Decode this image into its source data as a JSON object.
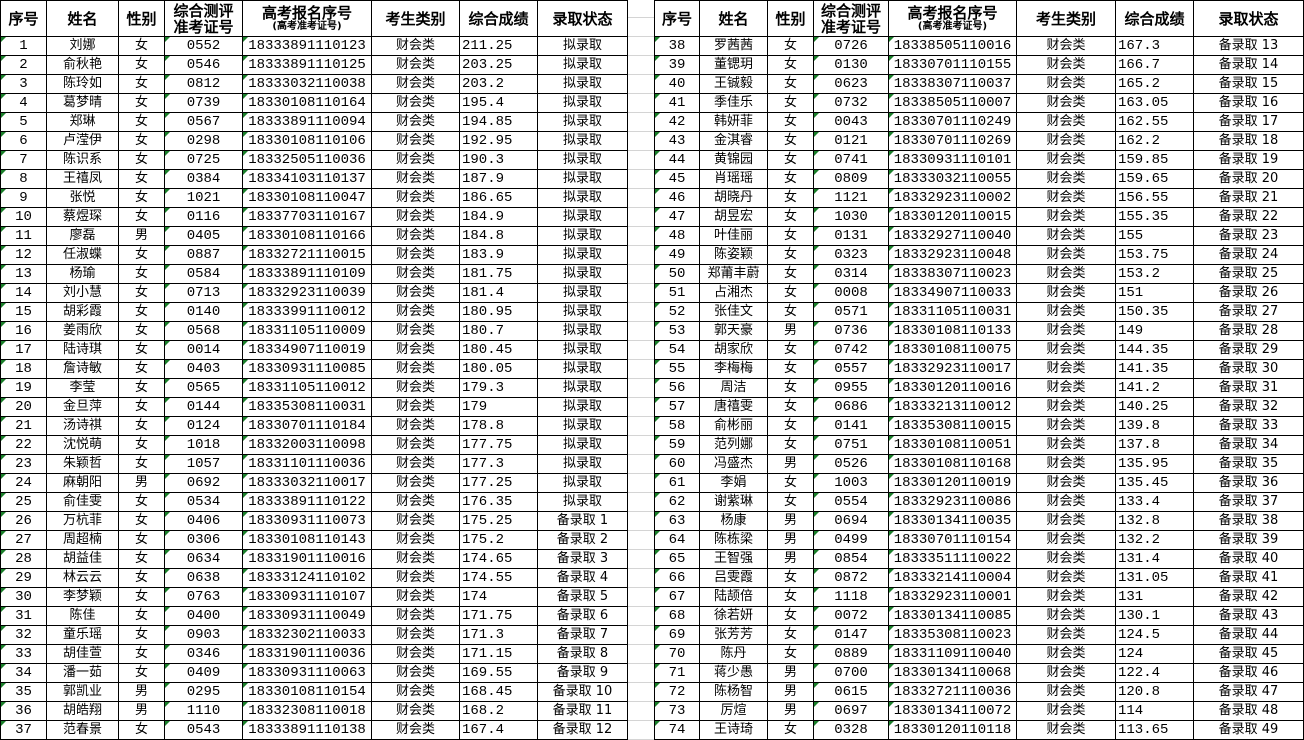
{
  "headers": {
    "seq": "序号",
    "name": "姓名",
    "gender": "性别",
    "eval_id_line1": "综合测评",
    "eval_id_line2": "准考证号",
    "gaokao_id": "高考报名序号",
    "gaokao_id_sub": "(高考准考证号)",
    "category": "考生类别",
    "score": "综合成绩",
    "status": "录取状态"
  },
  "left_rows": [
    [
      "1",
      "刘娜",
      "女",
      "0552",
      "18333891110123",
      "财会类",
      "211.25",
      "拟录取"
    ],
    [
      "2",
      "俞秋艳",
      "女",
      "0546",
      "18333891110125",
      "财会类",
      "203.25",
      "拟录取"
    ],
    [
      "3",
      "陈玲如",
      "女",
      "0812",
      "18333032110038",
      "财会类",
      "203.2",
      "拟录取"
    ],
    [
      "4",
      "葛梦晴",
      "女",
      "0739",
      "18330108110164",
      "财会类",
      "195.4",
      "拟录取"
    ],
    [
      "5",
      "郑琳",
      "女",
      "0567",
      "18333891110094",
      "财会类",
      "194.85",
      "拟录取"
    ],
    [
      "6",
      "卢滢伊",
      "女",
      "0298",
      "18330108110106",
      "财会类",
      "192.95",
      "拟录取"
    ],
    [
      "7",
      "陈识系",
      "女",
      "0725",
      "18332505110036",
      "财会类",
      "190.3",
      "拟录取"
    ],
    [
      "8",
      "王禧凤",
      "女",
      "0384",
      "18334103110137",
      "财会类",
      "187.9",
      "拟录取"
    ],
    [
      "9",
      "张悦",
      "女",
      "1021",
      "18330108110047",
      "财会类",
      "186.65",
      "拟录取"
    ],
    [
      "10",
      "蔡煜琛",
      "女",
      "0116",
      "18337703110167",
      "财会类",
      "184.9",
      "拟录取"
    ],
    [
      "11",
      "廖磊",
      "男",
      "0405",
      "18330108110166",
      "财会类",
      "184.8",
      "拟录取"
    ],
    [
      "12",
      "任淑蝶",
      "女",
      "0887",
      "18332721110015",
      "财会类",
      "183.9",
      "拟录取"
    ],
    [
      "13",
      "杨瑜",
      "女",
      "0584",
      "18333891110109",
      "财会类",
      "181.75",
      "拟录取"
    ],
    [
      "14",
      "刘小慧",
      "女",
      "0713",
      "18332923110039",
      "财会类",
      "181.4",
      "拟录取"
    ],
    [
      "15",
      "胡彩霞",
      "女",
      "0140",
      "18333991110012",
      "财会类",
      "180.95",
      "拟录取"
    ],
    [
      "16",
      "姜雨欣",
      "女",
      "0568",
      "18331105110009",
      "财会类",
      "180.7",
      "拟录取"
    ],
    [
      "17",
      "陆诗琪",
      "女",
      "0014",
      "18334907110019",
      "财会类",
      "180.45",
      "拟录取"
    ],
    [
      "18",
      "詹诗敏",
      "女",
      "0403",
      "18330931110085",
      "财会类",
      "180.05",
      "拟录取"
    ],
    [
      "19",
      "李莹",
      "女",
      "0565",
      "18331105110012",
      "财会类",
      "179.3",
      "拟录取"
    ],
    [
      "20",
      "金旦萍",
      "女",
      "0144",
      "18335308110031",
      "财会类",
      "179",
      "拟录取"
    ],
    [
      "21",
      "汤诗祺",
      "女",
      "0124",
      "18330701110184",
      "财会类",
      "178.8",
      "拟录取"
    ],
    [
      "22",
      "沈悦萌",
      "女",
      "1018",
      "18332003110098",
      "财会类",
      "177.75",
      "拟录取"
    ],
    [
      "23",
      "朱颖哲",
      "女",
      "1057",
      "18331101110036",
      "财会类",
      "177.3",
      "拟录取"
    ],
    [
      "24",
      "麻朝阳",
      "男",
      "0692",
      "18333032110017",
      "财会类",
      "177.25",
      "拟录取"
    ],
    [
      "25",
      "俞佳雯",
      "女",
      "0534",
      "18333891110122",
      "财会类",
      "176.35",
      "拟录取"
    ],
    [
      "26",
      "万杭菲",
      "女",
      "0406",
      "18330931110073",
      "财会类",
      "175.25",
      "备录取 1"
    ],
    [
      "27",
      "周超楠",
      "女",
      "0306",
      "18330108110143",
      "财会类",
      "175.2",
      "备录取 2"
    ],
    [
      "28",
      "胡益佳",
      "女",
      "0634",
      "18331901110016",
      "财会类",
      "174.65",
      "备录取 3"
    ],
    [
      "29",
      "林云云",
      "女",
      "0638",
      "18333124110102",
      "财会类",
      "174.55",
      "备录取 4"
    ],
    [
      "30",
      "李梦颖",
      "女",
      "0763",
      "18330931110107",
      "财会类",
      "174",
      "备录取 5"
    ],
    [
      "31",
      "陈佳",
      "女",
      "0400",
      "18330931110049",
      "财会类",
      "171.75",
      "备录取 6"
    ],
    [
      "32",
      "童乐瑶",
      "女",
      "0903",
      "18332302110033",
      "财会类",
      "171.3",
      "备录取 7"
    ],
    [
      "33",
      "胡佳萱",
      "女",
      "0346",
      "18331901110036",
      "财会类",
      "171.15",
      "备录取 8"
    ],
    [
      "34",
      "潘一茹",
      "女",
      "0409",
      "18330931110063",
      "财会类",
      "169.55",
      "备录取 9"
    ],
    [
      "35",
      "郭凯业",
      "男",
      "0295",
      "18330108110154",
      "财会类",
      "168.45",
      "备录取 10"
    ],
    [
      "36",
      "胡皓翔",
      "男",
      "1110",
      "18332308110018",
      "财会类",
      "168.2",
      "备录取 11"
    ],
    [
      "37",
      "范春景",
      "女",
      "0543",
      "18333891110138",
      "财会类",
      "167.4",
      "备录取 12"
    ]
  ],
  "right_rows": [
    [
      "38",
      "罗茜茜",
      "女",
      "0726",
      "18338505110016",
      "财会类",
      "167.3",
      "备录取 13"
    ],
    [
      "39",
      "董锶玥",
      "女",
      "0130",
      "18330701110155",
      "财会类",
      "166.7",
      "备录取 14"
    ],
    [
      "40",
      "王铖毅",
      "女",
      "0623",
      "18338307110037",
      "财会类",
      "165.2",
      "备录取 15"
    ],
    [
      "41",
      "季佳乐",
      "女",
      "0732",
      "18338505110007",
      "财会类",
      "163.05",
      "备录取 16"
    ],
    [
      "42",
      "韩妍菲",
      "女",
      "0043",
      "18330701110249",
      "财会类",
      "162.55",
      "备录取 17"
    ],
    [
      "43",
      "金淇睿",
      "女",
      "0121",
      "18330701110269",
      "财会类",
      "162.2",
      "备录取 18"
    ],
    [
      "44",
      "黄锦园",
      "女",
      "0741",
      "18330931110101",
      "财会类",
      "159.85",
      "备录取 19"
    ],
    [
      "45",
      "肖瑶瑶",
      "女",
      "0809",
      "18333032110055",
      "财会类",
      "159.65",
      "备录取 20"
    ],
    [
      "46",
      "胡晓丹",
      "女",
      "1121",
      "18332923110002",
      "财会类",
      "156.55",
      "备录取 21"
    ],
    [
      "47",
      "胡昱宏",
      "女",
      "1030",
      "18330120110015",
      "财会类",
      "155.35",
      "备录取 22"
    ],
    [
      "48",
      "叶佳丽",
      "女",
      "0131",
      "18332927110040",
      "财会类",
      "155",
      "备录取 23"
    ],
    [
      "49",
      "陈姿颖",
      "女",
      "0323",
      "18332923110048",
      "财会类",
      "153.75",
      "备录取 24"
    ],
    [
      "50",
      "郑莆丰蔚",
      "女",
      "0314",
      "18338307110023",
      "财会类",
      "153.2",
      "备录取 25"
    ],
    [
      "51",
      "占湘杰",
      "女",
      "0008",
      "18334907110033",
      "财会类",
      "151",
      "备录取 26"
    ],
    [
      "52",
      "张佳文",
      "女",
      "0571",
      "18331105110031",
      "财会类",
      "150.35",
      "备录取 27"
    ],
    [
      "53",
      "郭天豪",
      "男",
      "0736",
      "18330108110133",
      "财会类",
      "149",
      "备录取 28"
    ],
    [
      "54",
      "胡家欣",
      "女",
      "0742",
      "18330108110075",
      "财会类",
      "144.35",
      "备录取 29"
    ],
    [
      "55",
      "李梅梅",
      "女",
      "0557",
      "18332923110017",
      "财会类",
      "141.35",
      "备录取 30"
    ],
    [
      "56",
      "周洁",
      "女",
      "0955",
      "18330120110016",
      "财会类",
      "141.2",
      "备录取 31"
    ],
    [
      "57",
      "唐禧雯",
      "女",
      "0686",
      "18333213110012",
      "财会类",
      "140.25",
      "备录取 32"
    ],
    [
      "58",
      "俞彬丽",
      "女",
      "0141",
      "18335308110015",
      "财会类",
      "139.8",
      "备录取 33"
    ],
    [
      "59",
      "范列娜",
      "女",
      "0751",
      "18330108110051",
      "财会类",
      "137.8",
      "备录取 34"
    ],
    [
      "60",
      "冯盛杰",
      "男",
      "0526",
      "18330108110168",
      "财会类",
      "135.95",
      "备录取 35"
    ],
    [
      "61",
      "李娟",
      "女",
      "1003",
      "18330120110019",
      "财会类",
      "135.45",
      "备录取 36"
    ],
    [
      "62",
      "谢紫琳",
      "女",
      "0554",
      "18332923110086",
      "财会类",
      "133.4",
      "备录取 37"
    ],
    [
      "63",
      "杨康",
      "男",
      "0694",
      "18330134110035",
      "财会类",
      "132.8",
      "备录取 38"
    ],
    [
      "64",
      "陈栋梁",
      "男",
      "0499",
      "18330701110154",
      "财会类",
      "132.2",
      "备录取 39"
    ],
    [
      "65",
      "王智强",
      "男",
      "0854",
      "18333511110022",
      "财会类",
      "131.4",
      "备录取 40"
    ],
    [
      "66",
      "吕雯霞",
      "女",
      "0872",
      "18333214110004",
      "财会类",
      "131.05",
      "备录取 41"
    ],
    [
      "67",
      "陆颉倍",
      "女",
      "1118",
      "18332923110001",
      "财会类",
      "131",
      "备录取 42"
    ],
    [
      "68",
      "徐若妍",
      "女",
      "0072",
      "18330134110085",
      "财会类",
      "130.1",
      "备录取 43"
    ],
    [
      "69",
      "张芳芳",
      "女",
      "0147",
      "18335308110023",
      "财会类",
      "124.5",
      "备录取 44"
    ],
    [
      "70",
      "陈丹",
      "女",
      "0889",
      "18331109110040",
      "财会类",
      "124",
      "备录取 45"
    ],
    [
      "71",
      "蒋少愚",
      "男",
      "0700",
      "18330134110068",
      "财会类",
      "122.4",
      "备录取 46"
    ],
    [
      "72",
      "陈杨智",
      "男",
      "0615",
      "18332721110036",
      "财会类",
      "120.8",
      "备录取 47"
    ],
    [
      "73",
      "厉煊",
      "男",
      "0697",
      "18330134110072",
      "财会类",
      "114",
      "备录取 48"
    ],
    [
      "74",
      "王诗琦",
      "女",
      "0328",
      "18330120110118",
      "财会类",
      "113.65",
      "备录取 49"
    ]
  ],
  "colors": {
    "indicator_triangle": "#1a7f2a",
    "border": "#000000",
    "gridline": "#d4d4d4"
  }
}
